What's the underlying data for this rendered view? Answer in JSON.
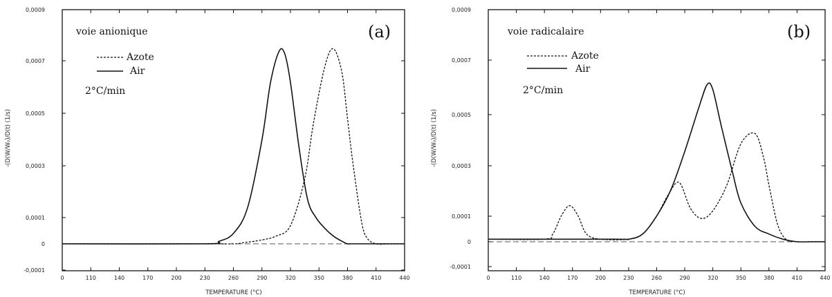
{
  "chart_data": [
    {
      "type": "line",
      "panel_label": "(a)",
      "annotation": "voie anionique",
      "rate_label": "2°C/min",
      "xlabel": "TEMPERATURE (°C)",
      "ylabel": "-(D(W/W₀)/D(t) (1/s)",
      "xticks": [
        "0",
        "110",
        "140",
        "170",
        "200",
        "230",
        "260",
        "290",
        "320",
        "350",
        "380",
        "410",
        "440"
      ],
      "yticks": [
        "-0,0001",
        "0",
        "0,0001",
        "0,0003",
        "0,0005",
        "0,0007",
        "0,0009"
      ],
      "xlim": [
        0,
        12
      ],
      "ylim": [
        -0.0001,
        0.0009
      ],
      "series": [
        {
          "name": "Azote",
          "style": "dashed",
          "x": [
            0,
            5,
            6,
            6.4,
            7,
            7.5,
            8,
            8.5,
            8.8,
            9.2,
            9.5,
            9.8,
            10,
            10.2,
            10.5,
            10.7,
            11,
            11.5,
            12
          ],
          "y": [
            0,
            0,
            0,
            5e-06,
            1.5e-05,
            3e-05,
            7e-05,
            0.00025,
            0.00046,
            0.00068,
            0.00075,
            0.00066,
            0.00048,
            0.0003,
            8e-05,
            2e-05,
            0,
            0,
            0
          ]
        },
        {
          "name": "Air",
          "style": "solid",
          "x": [
            0,
            5,
            5.5,
            6,
            6.5,
            7,
            7.3,
            7.6,
            7.8,
            8,
            8.3,
            8.6,
            8.9,
            9.2,
            9.5,
            9.8,
            10,
            10.2,
            12
          ],
          "y": [
            0,
            0,
            1e-05,
            4e-05,
            0.00014,
            0.0004,
            0.00062,
            0.00074,
            0.00073,
            0.00062,
            0.00037,
            0.00017,
            0.0001,
            6e-05,
            3e-05,
            1e-05,
            0,
            0,
            0
          ]
        }
      ]
    },
    {
      "type": "line",
      "panel_label": "(b)",
      "annotation": "voie radicalaire",
      "rate_label": "2°C/min",
      "xlabel": "TEMPERATURE (°C)",
      "ylabel": "-(D(W/W₀)/D(t) (1/s)",
      "xticks": [
        "0",
        "110",
        "140",
        "170",
        "200",
        "230",
        "260",
        "290",
        "320",
        "350",
        "380",
        "410",
        "440"
      ],
      "yticks": [
        "-0,0001",
        "0",
        "0,0001",
        "0,0003",
        "0,0005",
        "0,0007",
        "0,0009"
      ],
      "xlim": [
        0,
        12
      ],
      "ylim": [
        -0.0001,
        0.0009
      ],
      "series": [
        {
          "name": "Azote",
          "style": "dashed",
          "x": [
            0,
            2,
            2.3,
            2.6,
            2.9,
            3.2,
            3.5,
            4,
            5,
            5.5,
            6,
            6.4,
            6.8,
            7.2,
            7.6,
            8,
            8.5,
            9,
            9.5,
            9.8,
            10,
            10.3,
            10.6,
            11,
            11.5,
            12
          ],
          "y": [
            1e-05,
            1e-05,
            3e-05,
            0.0001,
            0.00014,
            0.0001,
            3e-05,
            1e-05,
            1e-05,
            3e-05,
            0.0001,
            0.00018,
            0.00023,
            0.00013,
            9e-05,
            0.00012,
            0.00022,
            0.00038,
            0.00042,
            0.00033,
            0.00022,
            7e-05,
            1e-05,
            0,
            0,
            0
          ]
        },
        {
          "name": "Air",
          "style": "solid",
          "x": [
            0,
            4.5,
            5,
            5.5,
            6,
            6.5,
            7,
            7.5,
            7.8,
            8,
            8.3,
            8.7,
            9,
            9.5,
            10,
            10.5,
            11,
            11.5,
            12
          ],
          "y": [
            1e-05,
            1e-05,
            1e-05,
            3e-05,
            0.0001,
            0.0002,
            0.00035,
            0.00052,
            0.00061,
            0.00059,
            0.00045,
            0.00027,
            0.00015,
            6e-05,
            3e-05,
            1e-05,
            0,
            0,
            0
          ]
        }
      ]
    }
  ]
}
